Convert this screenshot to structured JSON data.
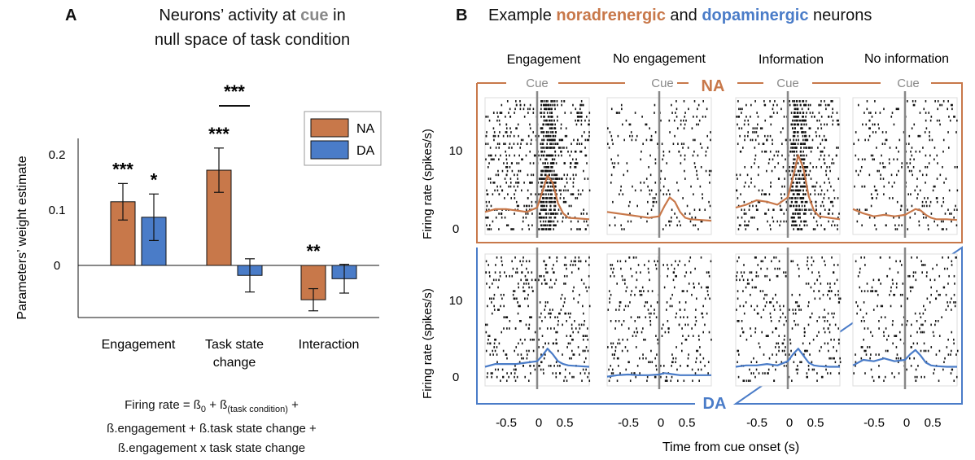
{
  "panel_a": {
    "letter": "A",
    "title_line1_pre": "Neurons’ activity at ",
    "title_keyword": "cue",
    "title_line1_post": " in",
    "title_line2": "null space of task condition",
    "formula_line1_pre": "Firing rate = ß",
    "formula_sub0": "0",
    "formula_line1_mid": " + ß",
    "formula_sub1": "(task condition)",
    "formula_line1_post": " +",
    "formula_line2": "ß.engagement + ß.task state change +",
    "formula_line3": "ß.engagement x task state change"
  },
  "panel_b": {
    "letter": "B",
    "title_pre": "Example ",
    "title_kw1": "noradrenergic",
    "title_mid": " and ",
    "title_kw2": "dopaminergic",
    "title_post": " neurons",
    "conditions": [
      "Engagement",
      "No engagement",
      "Information",
      "No information"
    ],
    "cue_label": "Cue",
    "na_label": "NA",
    "da_label": "DA",
    "ylabel": "Firing rate (spikes/s)",
    "xlabel": "Time from cue onset (s)",
    "yticks": [
      "10",
      "0"
    ],
    "xticks": [
      "-0.5",
      "0",
      "0.5"
    ]
  },
  "colors": {
    "na": "#c8784a",
    "da": "#4a7cc8",
    "cue": "#888888"
  },
  "chart_data": [
    {
      "type": "bar",
      "title": "Neurons’ activity at cue in null space of task condition",
      "ylabel": "Parameters’ weight estimate",
      "categories": [
        "Engagement",
        "Task state change",
        "Interaction"
      ],
      "category_lines": [
        [
          "Engagement"
        ],
        [
          "Task state",
          "change"
        ],
        [
          "Interaction"
        ]
      ],
      "series": [
        {
          "name": "NA",
          "values": [
            0.115,
            0.172,
            -0.062
          ],
          "errors": [
            0.033,
            0.04,
            0.02
          ]
        },
        {
          "name": "DA",
          "values": [
            0.087,
            -0.018,
            -0.024
          ],
          "errors": [
            0.042,
            0.03,
            0.026
          ]
        }
      ],
      "significance": [
        {
          "category": 0,
          "series": 0,
          "label": "***"
        },
        {
          "category": 0,
          "series": 1,
          "label": "*"
        },
        {
          "category": 1,
          "series": 0,
          "label": "***"
        },
        {
          "category": 1,
          "label": "***",
          "bracket": true
        },
        {
          "category": 2,
          "series": 0,
          "label": "**"
        }
      ],
      "yticks": [
        0,
        0.1,
        0.2
      ],
      "ytick_labels": [
        "0",
        "0.1",
        "0.2"
      ],
      "ylim": [
        -0.1,
        0.23
      ],
      "legend_placement": "top-right"
    },
    {
      "type": "line",
      "title": "Example noradrenergic and dopaminergic neurons",
      "xlabel": "Time from cue onset (s)",
      "ylabel": "Firing rate (spikes/s)",
      "xlim": [
        -1.0,
        1.0
      ],
      "ylim": [
        0,
        17
      ],
      "x": [
        -1.0,
        -0.8,
        -0.6,
        -0.4,
        -0.2,
        0.0,
        0.1,
        0.2,
        0.3,
        0.4,
        0.5,
        0.6,
        0.8,
        1.0
      ],
      "groups": [
        {
          "name": "NA",
          "series": [
            {
              "name": "Engagement",
              "values": [
                2.2,
                2.6,
                2.6,
                2.4,
                2.2,
                2.8,
                5.0,
                7.2,
                6.2,
                3.4,
                2.0,
                1.4,
                1.3,
                1.2
              ]
            },
            {
              "name": "No engagement",
              "values": [
                2.2,
                2.0,
                1.8,
                1.6,
                1.4,
                1.6,
                3.0,
                4.2,
                3.6,
                2.2,
                1.4,
                1.2,
                1.1,
                1.0
              ]
            },
            {
              "name": "Information",
              "values": [
                2.8,
                3.2,
                3.8,
                3.6,
                3.2,
                4.2,
                7.0,
                10.0,
                8.2,
                4.4,
                2.4,
                1.6,
                1.4,
                1.2
              ]
            },
            {
              "name": "No information",
              "values": [
                2.6,
                2.0,
                1.6,
                1.8,
                1.6,
                1.8,
                2.2,
                2.6,
                2.4,
                1.8,
                1.4,
                1.2,
                1.2,
                1.1
              ]
            }
          ]
        },
        {
          "name": "DA",
          "series": [
            {
              "name": "Engagement",
              "values": [
                1.8,
                2.2,
                2.2,
                2.2,
                2.4,
                2.6,
                3.4,
                4.4,
                3.6,
                2.6,
                2.2,
                2.0,
                1.9,
                1.8
              ]
            },
            {
              "name": "No engagement",
              "values": [
                0.4,
                0.6,
                0.7,
                0.6,
                0.6,
                0.7,
                0.9,
                0.8,
                0.7,
                0.6,
                0.6,
                0.6,
                0.6,
                0.6
              ]
            },
            {
              "name": "Information",
              "values": [
                1.8,
                2.0,
                2.0,
                2.2,
                2.0,
                2.6,
                3.6,
                4.4,
                3.4,
                2.4,
                2.0,
                1.9,
                1.8,
                1.8
              ]
            },
            {
              "name": "No information",
              "values": [
                2.0,
                2.8,
                2.6,
                3.0,
                2.6,
                2.8,
                3.6,
                4.2,
                3.4,
                2.4,
                2.0,
                1.9,
                1.8,
                1.8
              ]
            }
          ]
        }
      ]
    }
  ]
}
